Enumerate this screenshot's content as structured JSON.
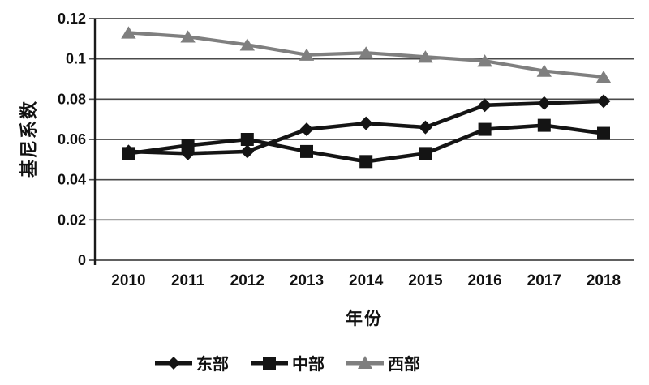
{
  "chart_data": {
    "type": "line",
    "xlabel": "年份",
    "ylabel": "基尼系数",
    "x": [
      "2010",
      "2011",
      "2012",
      "2013",
      "2014",
      "2015",
      "2016",
      "2017",
      "2018"
    ],
    "series": [
      {
        "name": "东部",
        "marker": "diamond",
        "color": "#141414",
        "values": [
          0.054,
          0.053,
          0.054,
          0.065,
          0.068,
          0.066,
          0.077,
          0.078,
          0.079
        ]
      },
      {
        "name": "中部",
        "marker": "square",
        "color": "#141414",
        "values": [
          0.053,
          0.057,
          0.06,
          0.054,
          0.049,
          0.053,
          0.065,
          0.067,
          0.063
        ]
      },
      {
        "name": "西部",
        "marker": "triangle",
        "color": "#7f7f7f",
        "values": [
          0.113,
          0.111,
          0.107,
          0.102,
          0.103,
          0.101,
          0.099,
          0.094,
          0.091
        ]
      }
    ],
    "ylim": [
      0,
      0.12
    ],
    "yticks": [
      {
        "value": 0,
        "label": "0"
      },
      {
        "value": 0.02,
        "label": "0.02"
      },
      {
        "value": 0.04,
        "label": "0.04"
      },
      {
        "value": 0.06,
        "label": "0.06"
      },
      {
        "value": 0.08,
        "label": "0.08"
      },
      {
        "value": 0.1,
        "label": "0.1"
      },
      {
        "value": 0.12,
        "label": "0.12"
      }
    ],
    "grid": true,
    "legend_position": "bottom"
  },
  "colors": {
    "grid": "#4a4a4a",
    "axis": "#1a1a1a",
    "text": "#111111",
    "background": "#ffffff"
  }
}
